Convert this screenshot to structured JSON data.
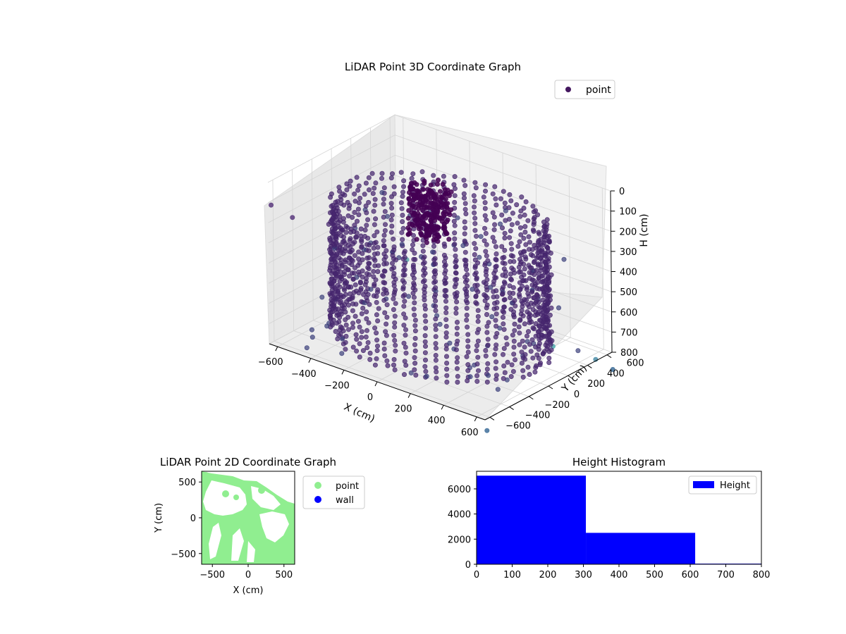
{
  "figure": {
    "background": "#ffffff"
  },
  "chart_data": [
    {
      "type": "scatter",
      "title": "LiDAR Point 3D Coordinate Graph",
      "xlabel": "X (cm)",
      "ylabel": "Y (cm)",
      "zlabel": "H (cm)",
      "xlim": [
        -650,
        650
      ],
      "ylim": [
        -650,
        650
      ],
      "zlim": [
        0,
        800
      ],
      "z_inverted": true,
      "xticks": [
        "−600",
        "−400",
        "−200",
        "0",
        "200",
        "400",
        "600"
      ],
      "yticks": [
        "−600",
        "−400",
        "−200",
        "0",
        "200",
        "400",
        "600"
      ],
      "zticks": [
        "0",
        "100",
        "200",
        "300",
        "400",
        "500",
        "600",
        "700",
        "800"
      ],
      "legend": {
        "entries": [
          "point"
        ],
        "position": "top-right"
      },
      "colormap": "viridis",
      "point_color": "#44175f",
      "ring_radius_cm": 560,
      "ring_height_range_cm": [
        150,
        760
      ],
      "center_cluster_radius_cm": 120,
      "center_cluster_height_range_cm": [
        80,
        330
      ],
      "grid": true
    },
    {
      "type": "scatter",
      "title": "LiDAR Point 2D Coordinate Graph",
      "xlabel": "X (cm)",
      "ylabel": "Y (cm)",
      "xlim": [
        -650,
        650
      ],
      "ylim": [
        -650,
        650
      ],
      "xticks": [
        "−500",
        "0",
        "500"
      ],
      "yticks": [
        "−500",
        "0",
        "500"
      ],
      "series": [
        {
          "name": "point",
          "color": "#90ee90"
        },
        {
          "name": "wall",
          "color": "#0000ff"
        }
      ],
      "legend": {
        "position": "outside-right"
      },
      "grid": false
    },
    {
      "type": "bar",
      "title": "Height Histogram",
      "xlim": [
        0,
        800
      ],
      "ylim": [
        0,
        7400
      ],
      "xticks": [
        "0",
        "100",
        "200",
        "300",
        "400",
        "500",
        "600",
        "700",
        "800"
      ],
      "yticks": [
        "0",
        "2000",
        "4000",
        "6000"
      ],
      "bins": [
        {
          "x0": 0,
          "x1": 307,
          "count": 7050
        },
        {
          "x0": 307,
          "x1": 614,
          "count": 2500
        },
        {
          "x0": 614,
          "x1": 800,
          "count": 50
        }
      ],
      "series": [
        {
          "name": "Height",
          "color": "#0000ff"
        }
      ],
      "legend": {
        "position": "top-right"
      },
      "grid": false
    }
  ]
}
